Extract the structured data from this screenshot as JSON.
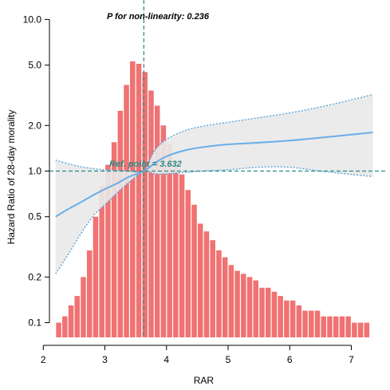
{
  "chart_data": {
    "type": "line",
    "title": "",
    "xlabel": "RAR",
    "ylabel": "Hazard Ratio of 28-day morality",
    "y_scale": "log",
    "xlim": [
      2.1,
      7.55
    ],
    "ylim": [
      0.08,
      12.5
    ],
    "x_ticks": [
      2,
      3,
      4,
      5,
      6,
      7
    ],
    "y_ticks": [
      0.1,
      0.2,
      0.5,
      1.0,
      2.0,
      5.0,
      10.0
    ],
    "y_tick_labels": [
      "0.1",
      "0.2",
      "0.5",
      "1.0",
      "2.0",
      "5.0",
      "10.0"
    ],
    "annotation_nonlinearity": "P for non-linearity: 0.236",
    "annotation_ref": "Ref. point = 3.632",
    "ref_point_x": 3.632,
    "ref_line_y": 1.0,
    "grid": false,
    "colors": {
      "hr_line": "#6aaee8",
      "ci_band": "#e9e9e9",
      "ci_line": "#5aa6dc",
      "hist_bar": "#f07272",
      "ref_line": "#2a8a82",
      "ref_text": "#2f8a84"
    },
    "series": [
      {
        "kind": "hazard_ratio",
        "x": [
          2.2,
          2.4,
          2.6,
          2.8,
          3.0,
          3.2,
          3.4,
          3.632,
          3.8,
          4.0,
          4.3,
          4.6,
          5.0,
          5.5,
          6.0,
          6.5,
          7.0,
          7.35
        ],
        "values": [
          0.5,
          0.56,
          0.62,
          0.69,
          0.76,
          0.83,
          0.92,
          1.0,
          1.12,
          1.25,
          1.37,
          1.44,
          1.5,
          1.54,
          1.59,
          1.66,
          1.74,
          1.8
        ]
      },
      {
        "kind": "ci_upper",
        "x": [
          2.2,
          2.4,
          2.6,
          2.8,
          3.0,
          3.2,
          3.4,
          3.632,
          3.8,
          4.0,
          4.3,
          4.6,
          5.0,
          5.5,
          6.0,
          6.5,
          7.0,
          7.35
        ],
        "values": [
          1.18,
          1.12,
          1.07,
          1.04,
          1.02,
          1.01,
          1.0,
          1.0,
          1.35,
          1.62,
          1.85,
          1.98,
          2.1,
          2.25,
          2.42,
          2.65,
          2.95,
          3.2
        ]
      },
      {
        "kind": "ci_lower",
        "x": [
          2.2,
          2.4,
          2.6,
          2.8,
          3.0,
          3.2,
          3.4,
          3.632,
          3.8,
          4.0,
          4.3,
          4.6,
          5.0,
          5.5,
          6.0,
          6.5,
          7.0,
          7.35
        ],
        "values": [
          0.21,
          0.28,
          0.38,
          0.5,
          0.6,
          0.72,
          0.85,
          1.0,
          0.96,
          0.96,
          0.98,
          1.0,
          1.02,
          1.06,
          1.06,
          1.0,
          0.95,
          0.92
        ]
      }
    ],
    "histogram": {
      "bin_start": 2.2,
      "bin_width": 0.1,
      "values": [
        0.1,
        0.11,
        0.13,
        0.15,
        0.2,
        0.3,
        0.5,
        0.8,
        1.1,
        1.55,
        2.5,
        3.7,
        5.3,
        5.1,
        4.5,
        3.4,
        2.7,
        2.0,
        1.5,
        1.15,
        0.95,
        0.75,
        0.6,
        0.45,
        0.4,
        0.35,
        0.3,
        0.27,
        0.24,
        0.22,
        0.21,
        0.2,
        0.19,
        0.17,
        0.17,
        0.16,
        0.15,
        0.14,
        0.14,
        0.13,
        0.12,
        0.12,
        0.12,
        0.11,
        0.11,
        0.11,
        0.11,
        0.11,
        0.1,
        0.1,
        0.1
      ]
    }
  }
}
